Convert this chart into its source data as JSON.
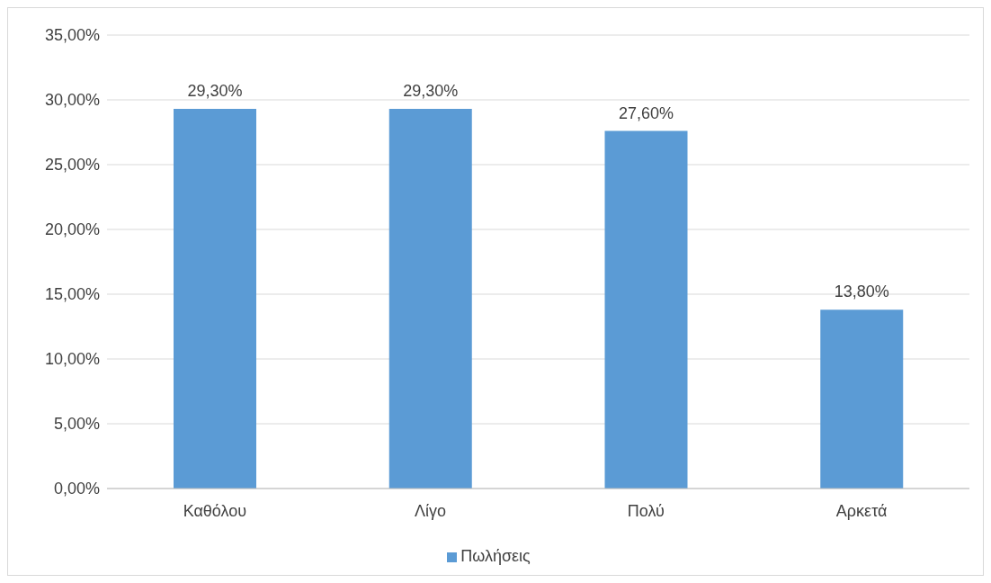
{
  "chart_data": {
    "type": "bar",
    "categories": [
      "Καθόλου",
      "Λίγο",
      "Πολύ",
      "Αρκετά"
    ],
    "series": [
      {
        "name": "Πωλήσεις",
        "color": "#5b9bd5",
        "values": [
          29.3,
          29.3,
          27.6,
          13.8
        ],
        "value_labels": [
          "29,30%",
          "29,30%",
          "27,60%",
          "13,80%"
        ]
      }
    ],
    "ylim": [
      0,
      35
    ],
    "yticks": [
      {
        "value": 0,
        "label": "0,00%"
      },
      {
        "value": 5,
        "label": "5,00%"
      },
      {
        "value": 10,
        "label": "10,00%"
      },
      {
        "value": 15,
        "label": "15,00%"
      },
      {
        "value": 20,
        "label": "20,00%"
      },
      {
        "value": 25,
        "label": "25,00%"
      },
      {
        "value": 30,
        "label": "30,00%"
      },
      {
        "value": 35,
        "label": "35,00%"
      }
    ],
    "grid": "y",
    "legend": "bottom"
  }
}
